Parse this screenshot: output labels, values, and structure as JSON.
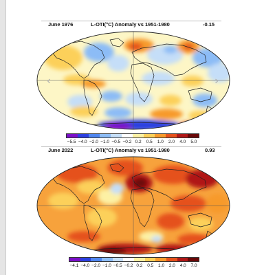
{
  "panels": [
    {
      "month_year": "June 1976",
      "title": "L-OTI(°C) Anomaly vs 1951-1980",
      "mean_anomaly": "-0.15",
      "colorbar_ticks": [
        "−5.5",
        "−4.0",
        "−2.0",
        "−1.0",
        "−0.5",
        "−0.2",
        "0.2",
        "0.5",
        "1.0",
        "2.0",
        "4.0",
        "5.0"
      ]
    },
    {
      "month_year": "June 2022",
      "title": "L-OTI(°C) Anomaly vs 1951-1980",
      "mean_anomaly": "0.93",
      "colorbar_ticks": [
        "−4.1",
        "−4.0",
        "−2.0",
        "−1.0",
        "−0.5",
        "−0.2",
        "0.2",
        "0.5",
        "1.0",
        "2.0",
        "4.0",
        "7.0"
      ]
    }
  ],
  "colorbar_colors": [
    "#7a10c8",
    "#2c3fe0",
    "#4f86f0",
    "#8cbcf6",
    "#c5def8",
    "#ffffff",
    "#fdf1a4",
    "#fcd05a",
    "#f79a2c",
    "#e5511c",
    "#b01818",
    "#6a0808"
  ],
  "map_palette": {
    "ocean_base_1976": "#fdf6c6",
    "ocean_base_2022": "#f7a23c",
    "land_line": "#222222",
    "grid_line": "#555555"
  },
  "nav": {
    "prev_icon": "chevron-left-icon",
    "next_icon": "chevron-right-icon"
  }
}
